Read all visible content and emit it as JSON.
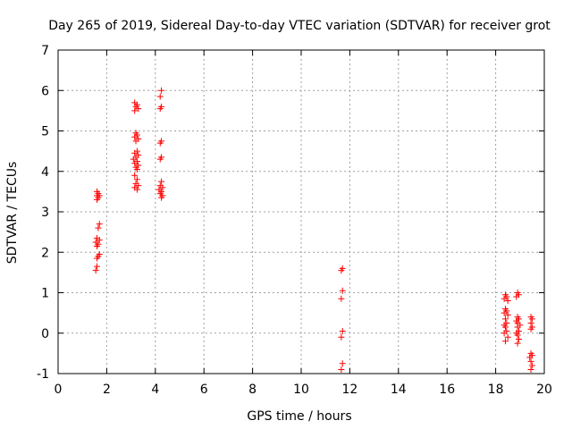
{
  "chart_data": {
    "type": "scatter",
    "title": "Day 265 of 2019, Sidereal Day-to-day VTEC variation (SDTVAR) for receiver grot",
    "xlabel": "GPS time / hours",
    "ylabel": "SDTVAR / TECUs",
    "xlim": [
      0,
      20
    ],
    "ylim": [
      -1,
      7
    ],
    "xticks": [
      "0",
      "2",
      "4",
      "6",
      "8",
      "10",
      "12",
      "14",
      "16",
      "18",
      "20"
    ],
    "yticks": [
      "-1",
      "0",
      "1",
      "2",
      "3",
      "4",
      "5",
      "6",
      "7"
    ],
    "grid": true,
    "marker": "+",
    "color": "#ff0000",
    "series": [
      {
        "name": "SDTVAR",
        "points": [
          [
            1.6,
            3.5
          ],
          [
            1.65,
            3.45
          ],
          [
            1.6,
            3.4
          ],
          [
            1.7,
            3.4
          ],
          [
            1.65,
            3.35
          ],
          [
            1.6,
            3.3
          ],
          [
            1.7,
            2.7
          ],
          [
            1.65,
            2.6
          ],
          [
            1.6,
            2.35
          ],
          [
            1.7,
            2.3
          ],
          [
            1.55,
            2.25
          ],
          [
            1.65,
            2.2
          ],
          [
            1.6,
            2.15
          ],
          [
            1.7,
            1.95
          ],
          [
            1.65,
            1.9
          ],
          [
            1.6,
            1.85
          ],
          [
            1.6,
            1.65
          ],
          [
            1.55,
            1.55
          ],
          [
            3.15,
            5.7
          ],
          [
            3.25,
            5.65
          ],
          [
            3.2,
            5.6
          ],
          [
            3.3,
            5.55
          ],
          [
            3.15,
            5.5
          ],
          [
            3.2,
            4.95
          ],
          [
            3.25,
            4.9
          ],
          [
            3.15,
            4.85
          ],
          [
            3.3,
            4.8
          ],
          [
            3.2,
            4.75
          ],
          [
            3.25,
            4.5
          ],
          [
            3.15,
            4.45
          ],
          [
            3.3,
            4.4
          ],
          [
            3.2,
            4.35
          ],
          [
            3.1,
            4.3
          ],
          [
            3.25,
            4.25
          ],
          [
            3.15,
            4.2
          ],
          [
            3.3,
            4.15
          ],
          [
            3.2,
            4.1
          ],
          [
            3.25,
            4.05
          ],
          [
            3.15,
            3.9
          ],
          [
            3.25,
            3.8
          ],
          [
            3.2,
            3.7
          ],
          [
            3.3,
            3.65
          ],
          [
            3.15,
            3.6
          ],
          [
            3.25,
            3.55
          ],
          [
            4.25,
            6.0
          ],
          [
            4.2,
            5.85
          ],
          [
            4.25,
            5.6
          ],
          [
            4.2,
            5.55
          ],
          [
            4.25,
            4.75
          ],
          [
            4.2,
            4.7
          ],
          [
            4.25,
            4.35
          ],
          [
            4.2,
            4.3
          ],
          [
            4.25,
            3.75
          ],
          [
            4.2,
            3.65
          ],
          [
            4.3,
            3.6
          ],
          [
            4.15,
            3.55
          ],
          [
            4.25,
            3.5
          ],
          [
            4.2,
            3.45
          ],
          [
            4.3,
            3.4
          ],
          [
            4.25,
            3.35
          ],
          [
            11.7,
            1.6
          ],
          [
            11.65,
            1.55
          ],
          [
            11.7,
            1.05
          ],
          [
            11.65,
            0.85
          ],
          [
            11.7,
            0.05
          ],
          [
            11.65,
            -0.1
          ],
          [
            11.7,
            -0.75
          ],
          [
            11.65,
            -0.9
          ],
          [
            18.4,
            0.95
          ],
          [
            18.45,
            0.9
          ],
          [
            18.35,
            0.85
          ],
          [
            18.5,
            0.8
          ],
          [
            18.4,
            0.6
          ],
          [
            18.45,
            0.55
          ],
          [
            18.35,
            0.5
          ],
          [
            18.5,
            0.45
          ],
          [
            18.4,
            0.35
          ],
          [
            18.45,
            0.25
          ],
          [
            18.35,
            0.2
          ],
          [
            18.4,
            0.15
          ],
          [
            18.45,
            0.05
          ],
          [
            18.35,
            0.0
          ],
          [
            18.5,
            -0.1
          ],
          [
            18.4,
            -0.2
          ],
          [
            18.9,
            1.0
          ],
          [
            18.95,
            0.95
          ],
          [
            18.85,
            0.9
          ],
          [
            18.9,
            0.4
          ],
          [
            18.95,
            0.35
          ],
          [
            18.85,
            0.3
          ],
          [
            18.9,
            0.25
          ],
          [
            19.0,
            0.2
          ],
          [
            18.9,
            0.15
          ],
          [
            18.95,
            0.05
          ],
          [
            18.85,
            0.0
          ],
          [
            18.9,
            -0.05
          ],
          [
            18.95,
            -0.15
          ],
          [
            18.9,
            -0.25
          ],
          [
            19.45,
            0.4
          ],
          [
            19.5,
            0.35
          ],
          [
            19.45,
            0.25
          ],
          [
            19.5,
            0.15
          ],
          [
            19.45,
            0.1
          ],
          [
            19.45,
            -0.5
          ],
          [
            19.5,
            -0.55
          ],
          [
            19.4,
            -0.6
          ],
          [
            19.45,
            -0.7
          ],
          [
            19.5,
            -0.8
          ],
          [
            19.45,
            -0.9
          ]
        ]
      }
    ]
  }
}
